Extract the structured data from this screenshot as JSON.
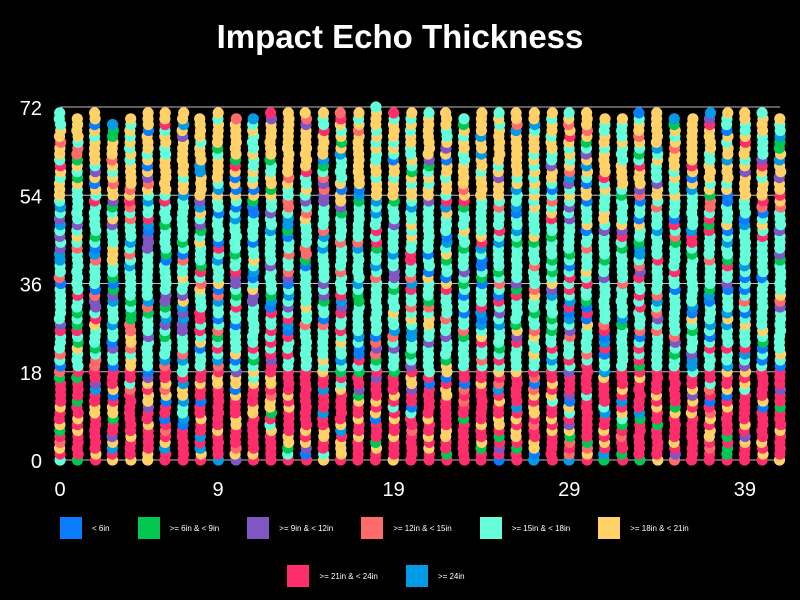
{
  "chart_data": {
    "type": "scatter",
    "title": "Impact Echo Thickness",
    "xlabel": "",
    "ylabel": "",
    "xlim": [
      0,
      41
    ],
    "ylim": [
      0,
      72
    ],
    "x_ticks": [
      "0",
      "9",
      "19",
      "29",
      "39"
    ],
    "y_ticks": [
      "0",
      "18",
      "36",
      "54",
      "72"
    ],
    "grid": "horizontal",
    "legend_position": "bottom",
    "series": [
      {
        "name": "< 6in",
        "color": "#0a7cff"
      },
      {
        "name": ">= 6in & < 9in",
        "color": "#00c853"
      },
      {
        "name": ">= 9in & < 12in",
        "color": "#7e57c2"
      },
      {
        "name": ">= 12in & < 15in",
        "color": "#ff6b6b"
      },
      {
        "name": ">= 15in & < 18in",
        "color": "#64ffda"
      },
      {
        "name": ">= 18in & < 21in",
        "color": "#ffd166"
      },
      {
        "name": ">= 21in & < 24in",
        "color": "#ff2d6b"
      },
      {
        "name": ">= 24in",
        "color": "#039be5"
      }
    ],
    "columns_x": [
      0,
      1,
      2,
      3,
      4,
      5,
      6,
      7,
      8,
      9,
      10,
      11,
      12,
      13,
      14,
      15,
      16,
      17,
      18,
      19,
      20,
      21,
      22,
      23,
      24,
      25,
      26,
      27,
      28,
      29,
      30,
      31,
      32,
      33,
      34,
      35,
      36,
      37,
      38,
      39,
      40,
      41
    ],
    "column_top_y": [
      71,
      70,
      71,
      69,
      70,
      71,
      72,
      71,
      70,
      71,
      70,
      70,
      72,
      71,
      72,
      71,
      71,
      72,
      73,
      72,
      71,
      71,
      72,
      70,
      72,
      71,
      71,
      71,
      71,
      72,
      71,
      70,
      70,
      72,
      71,
      70,
      70,
      71,
      71,
      71,
      71,
      70
    ],
    "column_dominant_bands": {
      "bottom_0_to_18": ">= 21in & < 24in",
      "middle_18_to_54": ">= 15in & < 18in",
      "top_54_to_72": ">= 18in & < 21in"
    }
  }
}
